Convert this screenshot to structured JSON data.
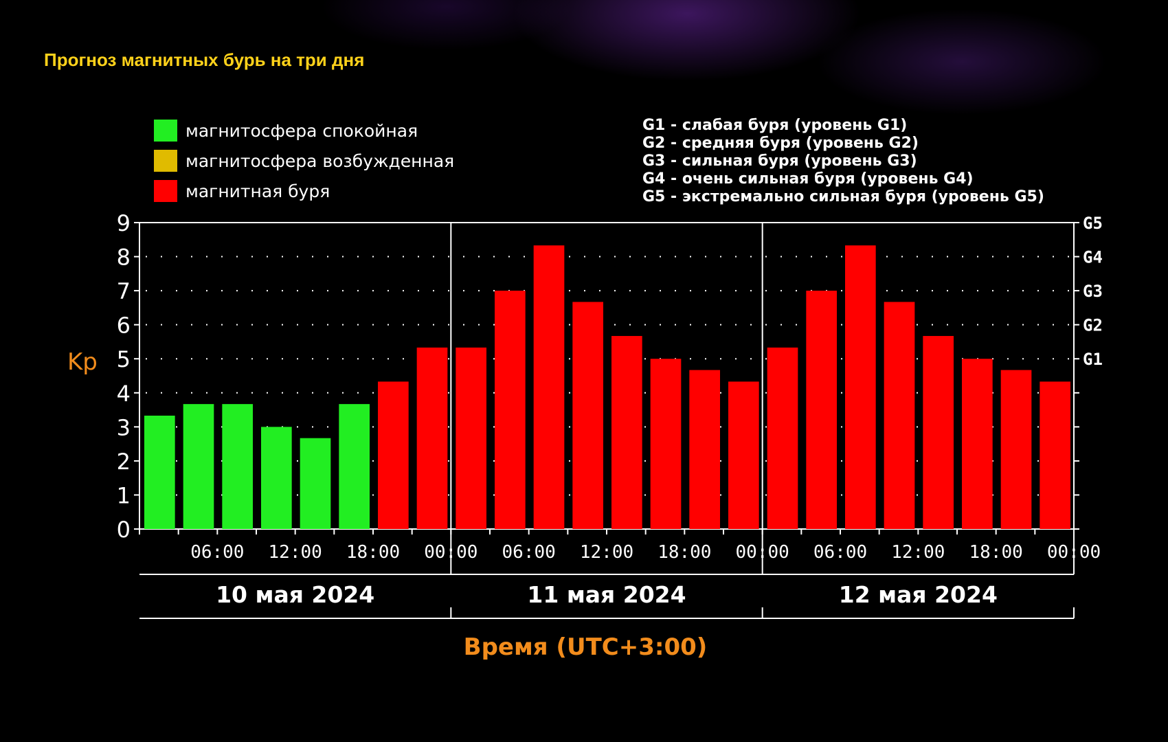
{
  "title": "Прогноз магнитных бурь на три дня",
  "legend_status": [
    {
      "label": "магнитосфера спокойная",
      "color": "#22ee22"
    },
    {
      "label": "магнитосфера возбужденная",
      "color": "#e0bb00"
    },
    {
      "label": "магнитная буря",
      "color": "#ff0000"
    }
  ],
  "legend_levels": [
    "G1 - слабая буря (уровень G1)",
    "G2 - средняя буря (уровень G2)",
    "G3 - сильная буря (уровень G3)",
    "G4 - очень сильная буря (уровень G4)",
    "G5 - экстремально сильная буря (уровень G5)"
  ],
  "chart_data": {
    "type": "bar",
    "ylabel": "Kp",
    "xlabel": "Время (UTC+3:00)",
    "ylim": [
      0,
      9
    ],
    "yticks": [
      "0",
      "1",
      "2",
      "3",
      "4",
      "5",
      "6",
      "7",
      "8",
      "9"
    ],
    "right_axis_labels": [
      {
        "kp": 5,
        "label": "G1"
      },
      {
        "kp": 6,
        "label": "G2"
      },
      {
        "kp": 7,
        "label": "G3"
      },
      {
        "kp": 8,
        "label": "G4"
      },
      {
        "kp": 9,
        "label": "G5"
      }
    ],
    "x_tick_labels": [
      "06:00",
      "12:00",
      "18:00",
      "00:00",
      "06:00",
      "12:00",
      "18:00",
      "00:00",
      "06:00",
      "12:00",
      "18:00",
      "00:00"
    ],
    "days": [
      "10 мая 2024",
      "11 мая 2024",
      "12 мая 2024"
    ],
    "values": [
      3.33,
      3.67,
      3.67,
      3.0,
      2.67,
      3.67,
      4.33,
      5.33,
      5.33,
      7.0,
      8.33,
      6.67,
      5.67,
      5.0,
      4.67,
      4.33,
      5.33,
      7.0,
      8.33,
      6.67,
      5.67,
      5.0,
      4.67,
      4.33
    ],
    "bar_status": [
      "calm",
      "calm",
      "calm",
      "calm",
      "calm",
      "calm",
      "storm",
      "storm",
      "storm",
      "storm",
      "storm",
      "storm",
      "storm",
      "storm",
      "storm",
      "storm",
      "storm",
      "storm",
      "storm",
      "storm",
      "storm",
      "storm",
      "storm",
      "storm"
    ],
    "colors": {
      "calm": "#22ee22",
      "excited": "#e0bb00",
      "storm": "#ff0000"
    },
    "grid": true
  }
}
